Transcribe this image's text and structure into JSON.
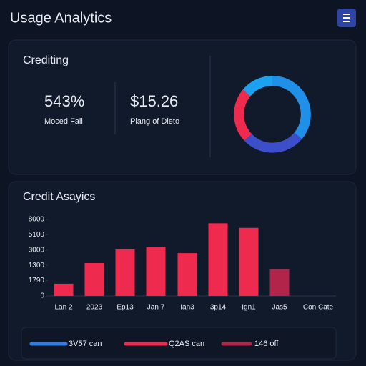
{
  "header": {
    "title": "Usage Analytics"
  },
  "summary": {
    "title": "Crediting",
    "stats": [
      {
        "value": "543%",
        "label": "Moced Fall"
      },
      {
        "value": "$15.26",
        "label": "Plang of Dieto"
      }
    ]
  },
  "chart_data": {
    "type": "bar",
    "title": "Credit Asayics",
    "categories": [
      "Lan 2",
      "2023",
      "Ep13",
      "Jan 7",
      "Ian3",
      "3p14",
      "Ign1",
      "Jas5",
      "Con Cate"
    ],
    "values": [
      0.8,
      2.15,
      3.05,
      3.2,
      2.8,
      4.75,
      4.45,
      1.75,
      null
    ],
    "colors": [
      "#ef2a4f",
      "#ef2a4f",
      "#ef2a4f",
      "#ef2a4f",
      "#ef2a4f",
      "#ef2a4f",
      "#ef2a4f",
      "#b3244a",
      "#ef2a4f"
    ],
    "ylim": [
      0,
      5
    ],
    "yticks": [
      {
        "value": 0,
        "label": "0"
      },
      {
        "value": 1,
        "label": "1790"
      },
      {
        "value": 2,
        "label": "1300"
      },
      {
        "value": 3,
        "label": "3000"
      },
      {
        "value": 4,
        "label": "5100"
      },
      {
        "value": 5,
        "label": "8000"
      }
    ],
    "legend": [
      {
        "name": "3V57 can",
        "color": "#2f7ee0"
      },
      {
        "name": "Q2AS can",
        "color": "#ef2a4f"
      },
      {
        "name": "146 off",
        "color": "#b3244a"
      }
    ]
  }
}
